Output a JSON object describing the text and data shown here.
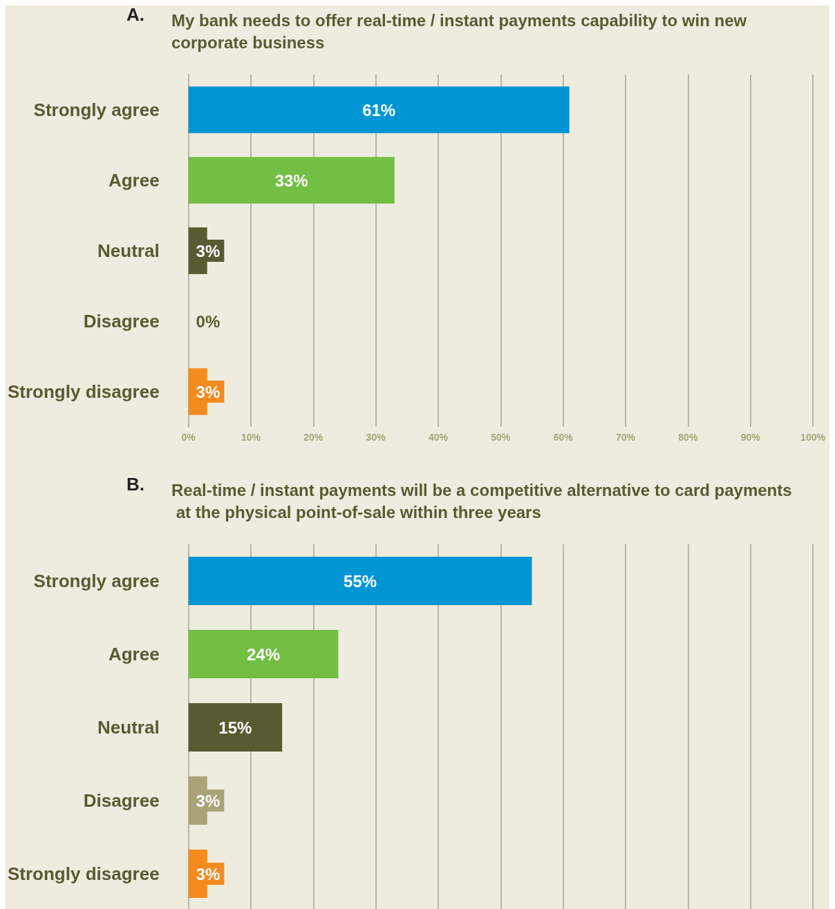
{
  "chart_data": [
    {
      "type": "bar",
      "orientation": "horizontal",
      "annotations": [
        "A."
      ],
      "title": "My bank needs to offer real-time / instant payments capability to win new corporate business",
      "categories": [
        "Strongly agree",
        "Agree",
        "Neutral",
        "Disagree",
        "Strongly disagree"
      ],
      "values": [
        61,
        33,
        3,
        0,
        3
      ],
      "value_labels": [
        "61%",
        "33%",
        "3%",
        "0%",
        "3%"
      ],
      "colors": [
        "#0095d3",
        "#72bf44",
        "#5a5a32",
        "#a8a478",
        "#f58a1f"
      ],
      "xlim": [
        0,
        100
      ],
      "xticks": [
        {
          "value": 0,
          "label": "0%"
        },
        {
          "value": 10,
          "label": "10%"
        },
        {
          "value": 20,
          "label": "20%"
        },
        {
          "value": 30,
          "label": "30%"
        },
        {
          "value": 40,
          "label": "40%"
        },
        {
          "value": 50,
          "label": "50%"
        },
        {
          "value": 60,
          "label": "60%"
        },
        {
          "value": 70,
          "label": "70%"
        },
        {
          "value": 80,
          "label": "80%"
        },
        {
          "value": 90,
          "label": "90%"
        },
        {
          "value": 100,
          "label": "100%"
        }
      ],
      "grid": "x"
    },
    {
      "type": "bar",
      "orientation": "horizontal",
      "annotations": [
        "B."
      ],
      "title": "Real-time / instant payments will be a competitive alternative to card payments at the physical point-of-sale within three years",
      "categories": [
        "Strongly agree",
        "Agree",
        "Neutral",
        "Disagree",
        "Strongly disagree"
      ],
      "values": [
        55,
        24,
        15,
        3,
        3
      ],
      "value_labels": [
        "55%",
        "24%",
        "15%",
        "3%",
        "3%"
      ],
      "colors": [
        "#0095d3",
        "#72bf44",
        "#5a5a32",
        "#a8a478",
        "#f58a1f"
      ],
      "xlim": [
        0,
        100
      ],
      "xticks": [
        0,
        10,
        20,
        30,
        40,
        50,
        60,
        70,
        80,
        90,
        100
      ],
      "grid": "x",
      "tick_labels": "y"
    }
  ]
}
